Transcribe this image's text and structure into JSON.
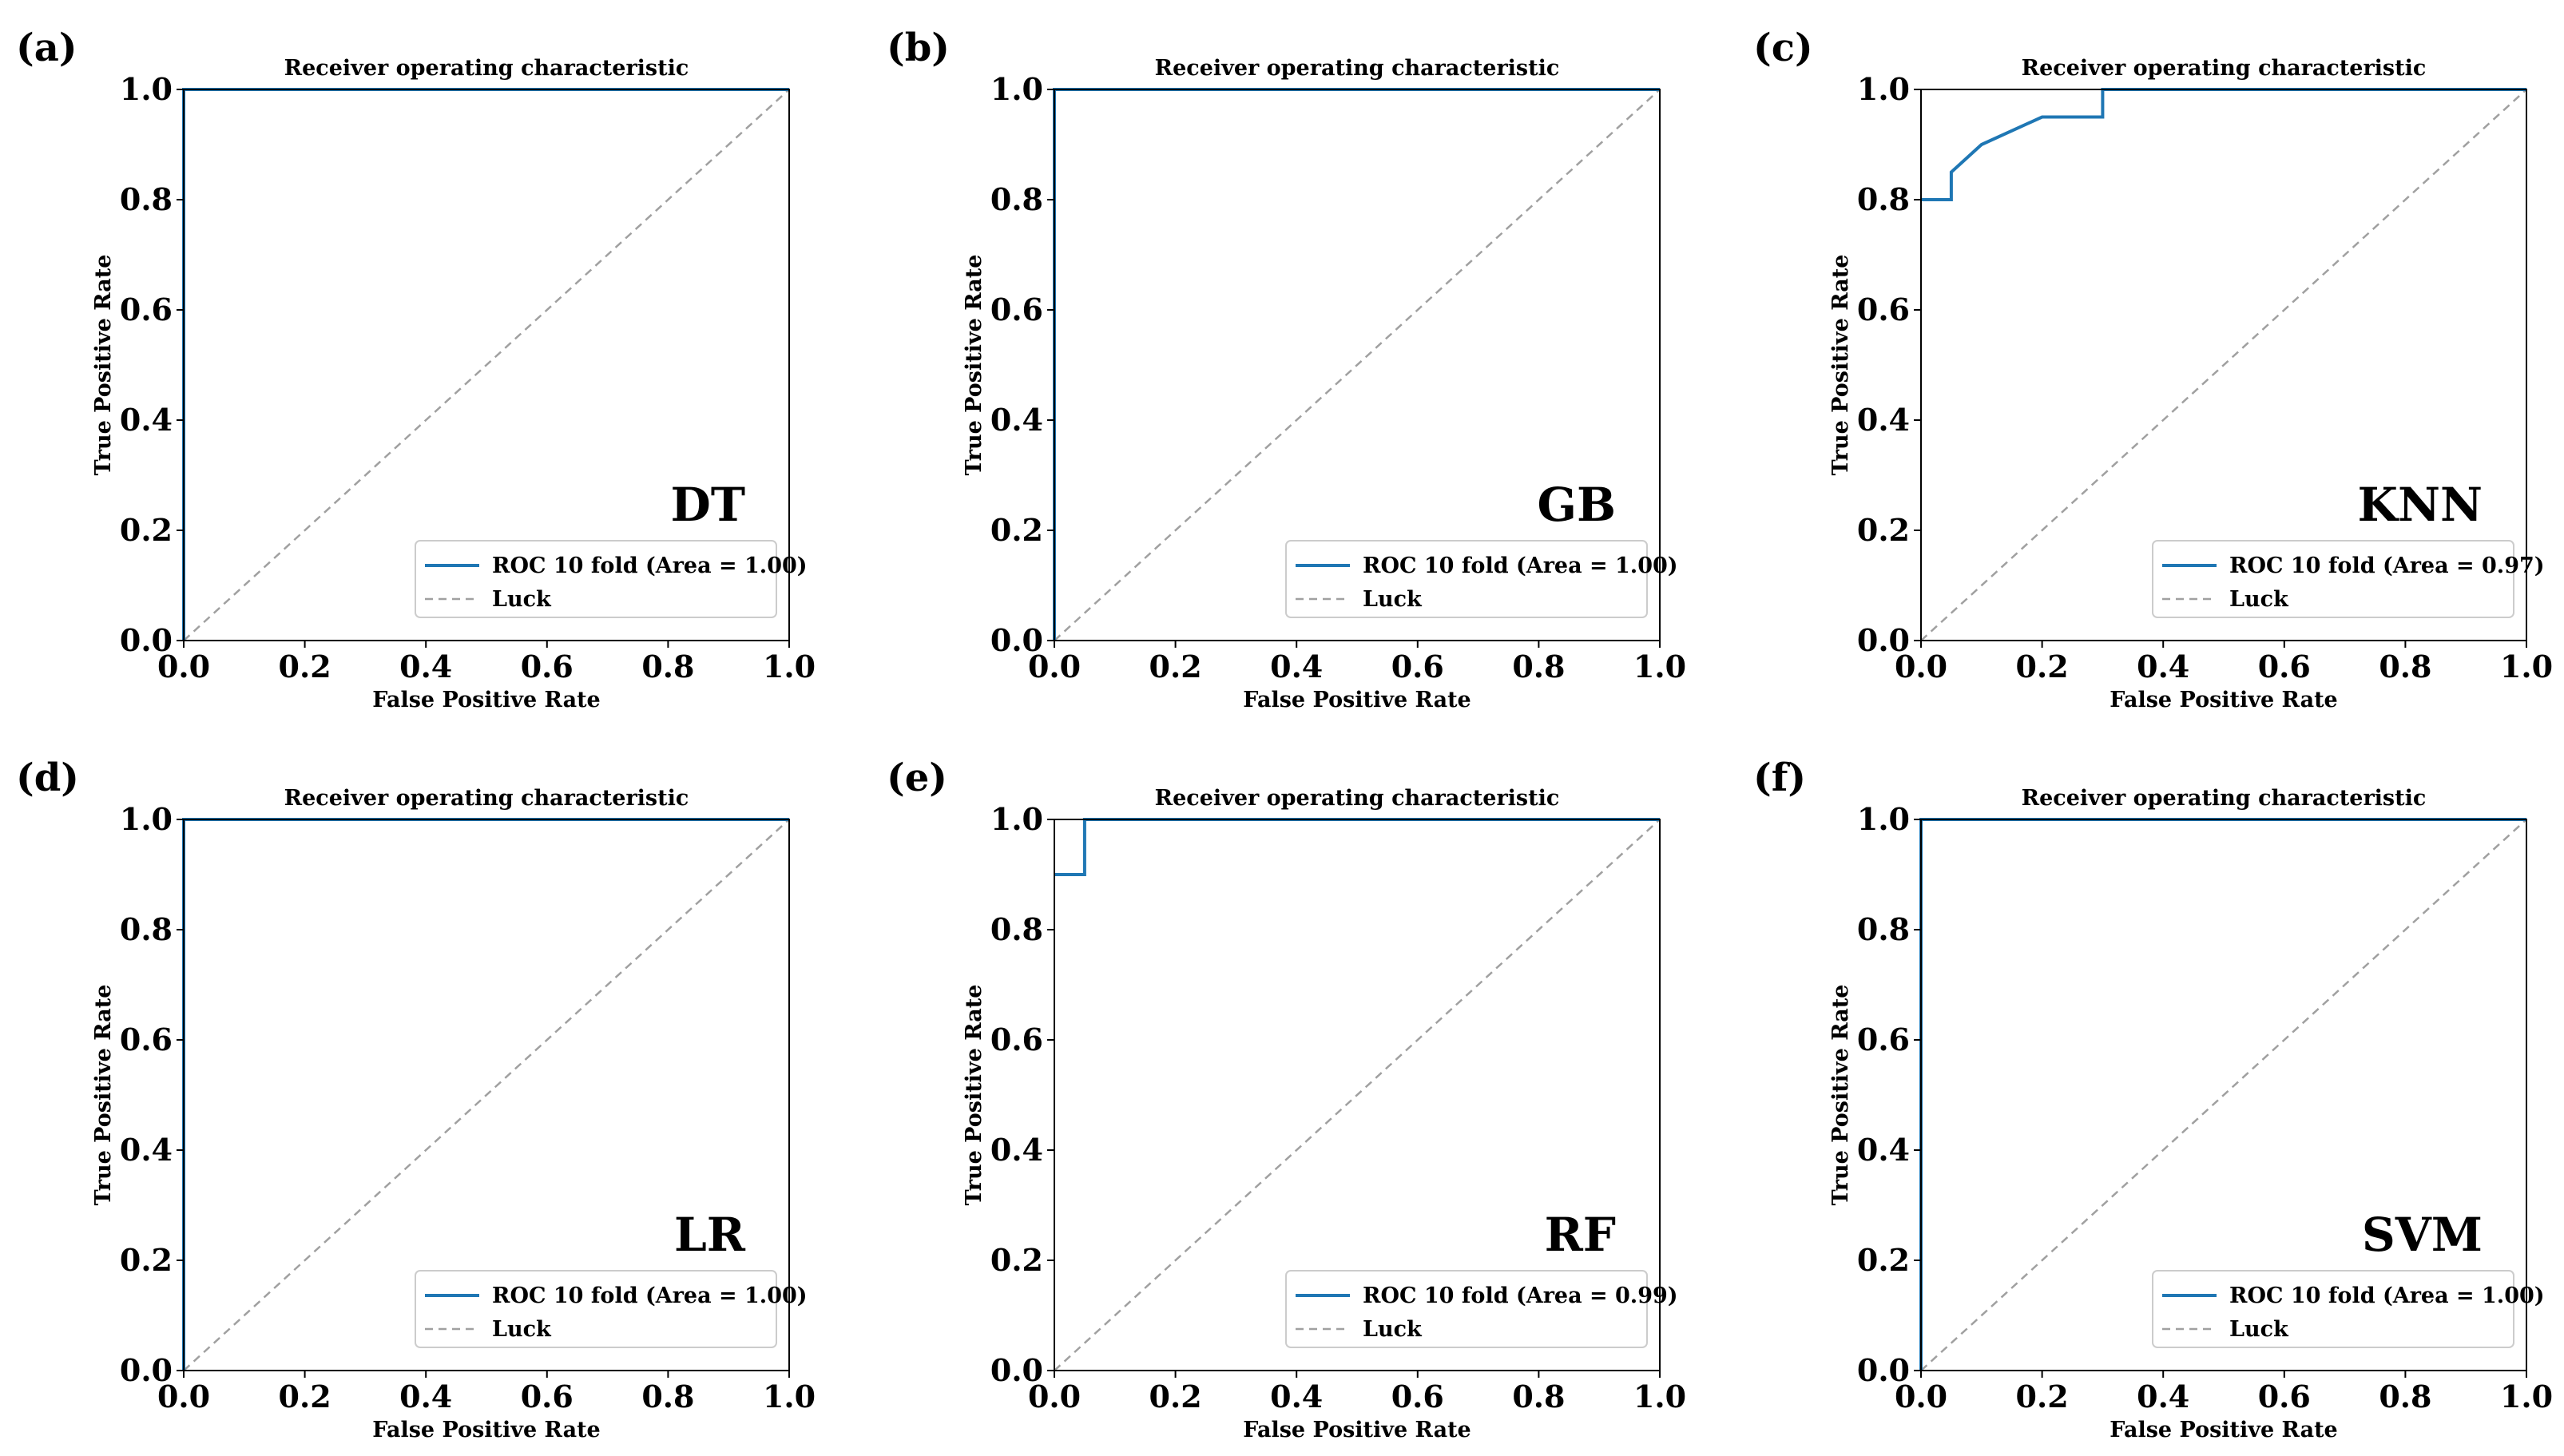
{
  "chart_data": [
    {
      "panel": "(a)",
      "type": "line",
      "title": "Receiver operating characteristic",
      "xlabel": "False Positive Rate",
      "ylabel": "True Positive Rate",
      "xlim": [
        0.0,
        1.0
      ],
      "ylim": [
        0.0,
        1.0
      ],
      "xticks": [
        "0.0",
        "0.2",
        "0.4",
        "0.6",
        "0.8",
        "1.0"
      ],
      "yticks": [
        "0.0",
        "0.2",
        "0.4",
        "0.6",
        "0.8",
        "1.0"
      ],
      "model": "DT",
      "legend": {
        "position": "lower-right",
        "entries": [
          "ROC 10 fold (Area = 1.00)",
          "Luck"
        ]
      },
      "series": [
        {
          "name": "ROC 10 fold (Area = 1.00)",
          "x": [
            0.0,
            0.0,
            1.0
          ],
          "y": [
            0.0,
            1.0,
            1.0
          ]
        },
        {
          "name": "Luck",
          "x": [
            0.0,
            1.0
          ],
          "y": [
            0.0,
            1.0
          ]
        }
      ]
    },
    {
      "panel": "(b)",
      "type": "line",
      "title": "Receiver operating characteristic",
      "xlabel": "False Positive Rate",
      "ylabel": "True Positive Rate",
      "xlim": [
        0.0,
        1.0
      ],
      "ylim": [
        0.0,
        1.0
      ],
      "xticks": [
        "0.0",
        "0.2",
        "0.4",
        "0.6",
        "0.8",
        "1.0"
      ],
      "yticks": [
        "0.0",
        "0.2",
        "0.4",
        "0.6",
        "0.8",
        "1.0"
      ],
      "model": "GB",
      "legend": {
        "position": "lower-right",
        "entries": [
          "ROC 10 fold (Area = 1.00)",
          "Luck"
        ]
      },
      "series": [
        {
          "name": "ROC 10 fold (Area = 1.00)",
          "x": [
            0.0,
            0.0,
            1.0
          ],
          "y": [
            0.0,
            1.0,
            1.0
          ]
        },
        {
          "name": "Luck",
          "x": [
            0.0,
            1.0
          ],
          "y": [
            0.0,
            1.0
          ]
        }
      ]
    },
    {
      "panel": "(c)",
      "type": "line",
      "title": "Receiver operating characteristic",
      "xlabel": "False Positive Rate",
      "ylabel": "True Positive Rate",
      "xlim": [
        0.0,
        1.0
      ],
      "ylim": [
        0.0,
        1.0
      ],
      "xticks": [
        "0.0",
        "0.2",
        "0.4",
        "0.6",
        "0.8",
        "1.0"
      ],
      "yticks": [
        "0.0",
        "0.2",
        "0.4",
        "0.6",
        "0.8",
        "1.0"
      ],
      "model": "KNN",
      "legend": {
        "position": "lower-right",
        "entries": [
          "ROC 10 fold (Area = 0.97)",
          "Luck"
        ]
      },
      "series": [
        {
          "name": "ROC 10 fold (Area = 0.97)",
          "x": [
            0.0,
            0.05,
            0.05,
            0.1,
            0.2,
            0.3,
            0.3,
            1.0
          ],
          "y": [
            0.8,
            0.8,
            0.85,
            0.9,
            0.95,
            0.95,
            1.0,
            1.0
          ]
        },
        {
          "name": "Luck",
          "x": [
            0.0,
            1.0
          ],
          "y": [
            0.0,
            1.0
          ]
        }
      ]
    },
    {
      "panel": "(d)",
      "type": "line",
      "title": "Receiver operating characteristic",
      "xlabel": "False Positive Rate",
      "ylabel": "True Positive Rate",
      "xlim": [
        0.0,
        1.0
      ],
      "ylim": [
        0.0,
        1.0
      ],
      "xticks": [
        "0.0",
        "0.2",
        "0.4",
        "0.6",
        "0.8",
        "1.0"
      ],
      "yticks": [
        "0.0",
        "0.2",
        "0.4",
        "0.6",
        "0.8",
        "1.0"
      ],
      "model": "LR",
      "legend": {
        "position": "lower-right",
        "entries": [
          "ROC 10 fold (Area = 1.00)",
          "Luck"
        ]
      },
      "series": [
        {
          "name": "ROC 10 fold (Area = 1.00)",
          "x": [
            0.0,
            0.0,
            1.0
          ],
          "y": [
            0.0,
            1.0,
            1.0
          ]
        },
        {
          "name": "Luck",
          "x": [
            0.0,
            1.0
          ],
          "y": [
            0.0,
            1.0
          ]
        }
      ]
    },
    {
      "panel": "(e)",
      "type": "line",
      "title": "Receiver operating characteristic",
      "xlabel": "False Positive Rate",
      "ylabel": "True Positive Rate",
      "xlim": [
        0.0,
        1.0
      ],
      "ylim": [
        0.0,
        1.0
      ],
      "xticks": [
        "0.0",
        "0.2",
        "0.4",
        "0.6",
        "0.8",
        "1.0"
      ],
      "yticks": [
        "0.0",
        "0.2",
        "0.4",
        "0.6",
        "0.8",
        "1.0"
      ],
      "model": "RF",
      "legend": {
        "position": "lower-right",
        "entries": [
          "ROC 10 fold (Area = 0.99)",
          "Luck"
        ]
      },
      "series": [
        {
          "name": "ROC 10 fold (Area = 0.99)",
          "x": [
            0.0,
            0.05,
            0.05,
            1.0
          ],
          "y": [
            0.9,
            0.9,
            1.0,
            1.0
          ]
        },
        {
          "name": "Luck",
          "x": [
            0.0,
            1.0
          ],
          "y": [
            0.0,
            1.0
          ]
        }
      ]
    },
    {
      "panel": "(f)",
      "type": "line",
      "title": "Receiver operating characteristic",
      "xlabel": "False Positive Rate",
      "ylabel": "True Positive Rate",
      "xlim": [
        0.0,
        1.0
      ],
      "ylim": [
        0.0,
        1.0
      ],
      "xticks": [
        "0.0",
        "0.2",
        "0.4",
        "0.6",
        "0.8",
        "1.0"
      ],
      "yticks": [
        "0.0",
        "0.2",
        "0.4",
        "0.6",
        "0.8",
        "1.0"
      ],
      "model": "SVM",
      "legend": {
        "position": "lower-right",
        "entries": [
          "ROC 10 fold (Area = 1.00)",
          "Luck"
        ]
      },
      "series": [
        {
          "name": "ROC 10 fold (Area = 1.00)",
          "x": [
            0.0,
            0.0,
            1.0
          ],
          "y": [
            0.0,
            1.0,
            1.0
          ]
        },
        {
          "name": "Luck",
          "x": [
            0.0,
            1.0
          ],
          "y": [
            0.0,
            1.0
          ]
        }
      ]
    }
  ],
  "colors": {
    "roc": "#1f77b4",
    "luck": "#a0a0a0"
  }
}
